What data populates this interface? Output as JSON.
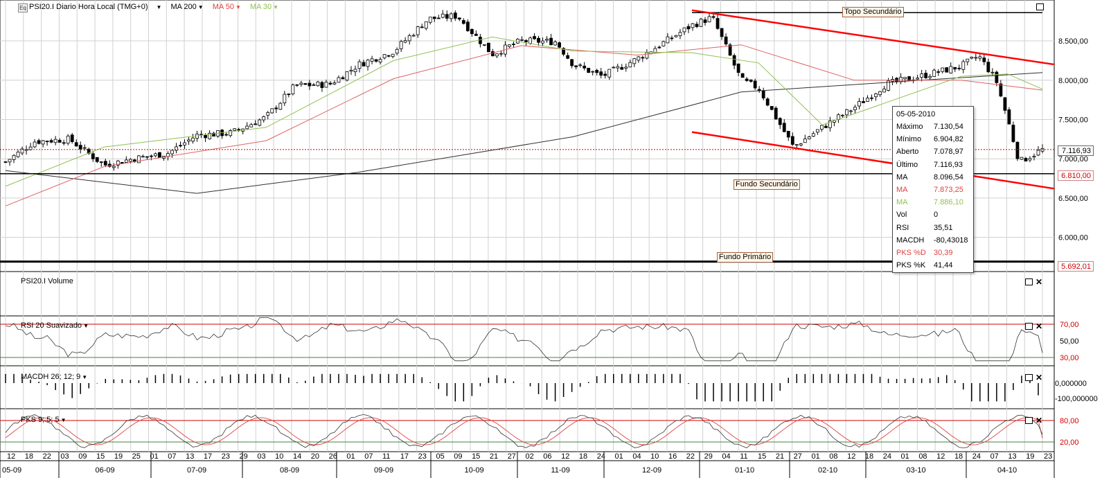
{
  "header": {
    "symbol_badge": "Eq",
    "title": "PSI20.I Diario Hora Local (TMG+0)",
    "ma200": "MA 200",
    "ma50": "MA 50",
    "ma30": "MA 30"
  },
  "colors": {
    "ma200": "#303030",
    "ma50": "#e06060",
    "ma30": "#90c050",
    "level_red": "#ff0000",
    "up_candle": "#ffffff",
    "down_candle": "#000000",
    "grid": "#d0d0d0"
  },
  "annotations": {
    "topo_secundario": "Topo Secundário",
    "fundo_secundario": "Fundo Secundário",
    "fundo_primario": "Fundo Primário"
  },
  "price_axis": {
    "ticks": [
      "8.500,00",
      "8.000,00",
      "7.500,00",
      "7.000,00",
      "6.500,00",
      "6.000,00"
    ],
    "last_price": "7.116,93",
    "level_secundario": "6.810,00",
    "level_primario": "5.692,01"
  },
  "tooltip": {
    "date": "05-05-2010",
    "rows": [
      {
        "k": "Máximo",
        "v": "7.130,54",
        "color": "#000"
      },
      {
        "k": "Mínimo",
        "v": "6.904,82",
        "color": "#000"
      },
      {
        "k": "Aberto",
        "v": "7.078,97",
        "color": "#000"
      },
      {
        "k": "Último",
        "v": "7.116,93",
        "color": "#000"
      },
      {
        "k": "MA",
        "v": "8.096,54",
        "color": "#000"
      },
      {
        "k": "MA",
        "v": "7.873,25",
        "color": "#e04040"
      },
      {
        "k": "MA",
        "v": "7.886,10",
        "color": "#90c050"
      },
      {
        "k": "Vol",
        "v": "0",
        "color": "#000"
      },
      {
        "k": "RSI",
        "v": "35,51",
        "color": "#000"
      },
      {
        "k": "MACDH",
        "v": "-80,43018",
        "color": "#000"
      },
      {
        "k": "PKS %D",
        "v": "30,39",
        "color": "#e04040"
      },
      {
        "k": "PKS %K",
        "v": "41,44",
        "color": "#000"
      }
    ]
  },
  "panes": {
    "volume": {
      "title": "PSI20.I Volume"
    },
    "rsi": {
      "title": "RSI 20 Suavizado",
      "ticks": [
        "70,00",
        "50,00",
        "30,00"
      ]
    },
    "macd": {
      "title": "MACDH 26; 12; 9",
      "ticks": [
        "0,000000",
        "-100,000000"
      ]
    },
    "pks": {
      "title": "PKS 9; 5; 5",
      "ticks": [
        "80,00",
        "20,00"
      ]
    }
  },
  "x_axis": {
    "days": [
      "12",
      "18",
      "22",
      "03",
      "09",
      "15",
      "19",
      "25",
      "01",
      "07",
      "13",
      "17",
      "23",
      "29",
      "03",
      "10",
      "14",
      "20",
      "26",
      "01",
      "07",
      "11",
      "17",
      "23",
      "05",
      "09",
      "15",
      "21",
      "27",
      "02",
      "06",
      "12",
      "18",
      "24",
      "01",
      "04",
      "10",
      "16",
      "22",
      "29",
      "04",
      "11",
      "15",
      "21",
      "27",
      "01",
      "08",
      "12",
      "18",
      "24",
      "01",
      "08",
      "12",
      "18",
      "24",
      "07",
      "13",
      "19",
      "23"
    ],
    "months": [
      "05-09",
      "06-09",
      "07-09",
      "08-09",
      "09-09",
      "10-09",
      "11-09",
      "12-09",
      "01-10",
      "02-10",
      "03-10",
      "04-10"
    ]
  },
  "chart_data": {
    "type": "candlestick",
    "title": "PSI20.I Diario Hora Local (TMG+0)",
    "x_range": [
      "2009-05-12",
      "2010-05-05"
    ],
    "ylim": [
      5600,
      8950
    ],
    "approx_closes": [
      {
        "x": "2009-05-12",
        "y": 6960
      },
      {
        "x": "2009-05-22",
        "y": 7220
      },
      {
        "x": "2009-06-03",
        "y": 7250
      },
      {
        "x": "2009-06-15",
        "y": 6920
      },
      {
        "x": "2009-06-25",
        "y": 7000
      },
      {
        "x": "2009-07-07",
        "y": 7070
      },
      {
        "x": "2009-07-17",
        "y": 7300
      },
      {
        "x": "2009-07-29",
        "y": 7330
      },
      {
        "x": "2009-08-10",
        "y": 7530
      },
      {
        "x": "2009-08-20",
        "y": 7930
      },
      {
        "x": "2009-09-01",
        "y": 7950
      },
      {
        "x": "2009-09-11",
        "y": 8200
      },
      {
        "x": "2009-09-23",
        "y": 8370
      },
      {
        "x": "2009-10-05",
        "y": 8780
      },
      {
        "x": "2009-10-15",
        "y": 8820
      },
      {
        "x": "2009-10-27",
        "y": 8330
      },
      {
        "x": "2009-11-06",
        "y": 8500
      },
      {
        "x": "2009-11-18",
        "y": 8490
      },
      {
        "x": "2009-11-24",
        "y": 8200
      },
      {
        "x": "2009-12-04",
        "y": 8050
      },
      {
        "x": "2009-12-16",
        "y": 8270
      },
      {
        "x": "2010-01-04",
        "y": 8700
      },
      {
        "x": "2010-01-11",
        "y": 8800
      },
      {
        "x": "2010-01-21",
        "y": 8000
      },
      {
        "x": "2010-01-27",
        "y": 7900
      },
      {
        "x": "2010-02-08",
        "y": 7150
      },
      {
        "x": "2010-02-18",
        "y": 7400
      },
      {
        "x": "2010-03-01",
        "y": 7650
      },
      {
        "x": "2010-03-12",
        "y": 7950
      },
      {
        "x": "2010-03-24",
        "y": 8050
      },
      {
        "x": "2010-04-07",
        "y": 8180
      },
      {
        "x": "2010-04-13",
        "y": 8310
      },
      {
        "x": "2010-04-19",
        "y": 8000
      },
      {
        "x": "2010-04-23",
        "y": 7500
      },
      {
        "x": "2010-04-27",
        "y": 6960
      },
      {
        "x": "2010-05-05",
        "y": 7116.93
      }
    ],
    "last_bar": {
      "date": "2010-05-05",
      "open": 7078.97,
      "high": 7130.54,
      "low": 6904.82,
      "close": 7116.93
    },
    "moving_averages": {
      "ma200": [
        {
          "x": "2009-05-12",
          "y": 6850
        },
        {
          "x": "2009-07-17",
          "y": 6560
        },
        {
          "x": "2009-09-11",
          "y": 6830
        },
        {
          "x": "2009-11-24",
          "y": 7280
        },
        {
          "x": "2010-01-21",
          "y": 7850
        },
        {
          "x": "2010-03-24",
          "y": 8000
        },
        {
          "x": "2010-05-05",
          "y": 8096.54
        }
      ],
      "ma50": [
        {
          "x": "2009-05-12",
          "y": 6400
        },
        {
          "x": "2009-06-15",
          "y": 6900
        },
        {
          "x": "2009-08-10",
          "y": 7230
        },
        {
          "x": "2009-09-23",
          "y": 8020
        },
        {
          "x": "2009-11-06",
          "y": 8440
        },
        {
          "x": "2009-12-16",
          "y": 8320
        },
        {
          "x": "2010-01-21",
          "y": 8450
        },
        {
          "x": "2010-03-01",
          "y": 8000
        },
        {
          "x": "2010-04-07",
          "y": 8000
        },
        {
          "x": "2010-05-05",
          "y": 7873.25
        }
      ],
      "ma30": [
        {
          "x": "2009-05-12",
          "y": 6650
        },
        {
          "x": "2009-06-15",
          "y": 7150
        },
        {
          "x": "2009-08-10",
          "y": 7400
        },
        {
          "x": "2009-09-23",
          "y": 8250
        },
        {
          "x": "2009-10-27",
          "y": 8550
        },
        {
          "x": "2009-11-24",
          "y": 8370
        },
        {
          "x": "2010-01-04",
          "y": 8350
        },
        {
          "x": "2010-01-27",
          "y": 8220
        },
        {
          "x": "2010-02-18",
          "y": 7430
        },
        {
          "x": "2010-04-07",
          "y": 8050
        },
        {
          "x": "2010-04-23",
          "y": 8080
        },
        {
          "x": "2010-05-05",
          "y": 7886.1
        }
      ]
    },
    "levels": [
      {
        "name": "Topo Secundário",
        "value": 8860
      },
      {
        "name": "Fundo Secundário",
        "value": 6810.0
      },
      {
        "name": "Fundo Primário",
        "value": 5692.01
      }
    ],
    "channel_lines": [
      {
        "from": {
          "x": "2010-01-04",
          "y": 8890
        },
        "to": {
          "x": "2010-05-05",
          "y": 8200
        }
      },
      {
        "from": {
          "x": "2010-01-04",
          "y": 7340
        },
        "to": {
          "x": "2010-05-05",
          "y": 6620
        }
      }
    ],
    "indicators": {
      "rsi_levels": [
        70,
        30
      ],
      "rsi_last": 35.51,
      "macdh_last": -80.43018,
      "pks_levels": [
        80,
        20
      ],
      "pks_d_last": 30.39,
      "pks_k_last": 41.44
    }
  }
}
